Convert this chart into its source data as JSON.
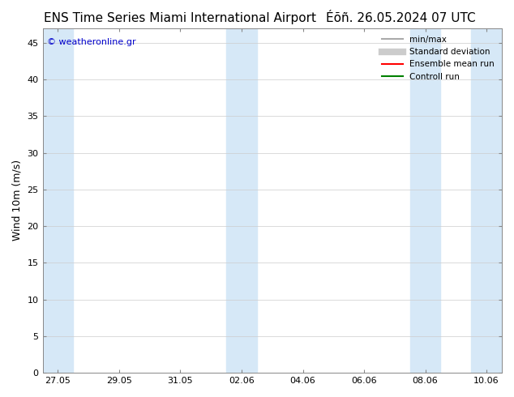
{
  "title_left": "ENS Time Series Miami International Airport",
  "title_right": "Éõñ. 26.05.2024 07 UTC",
  "ylabel": "Wind 10m (m/s)",
  "xlabel": "",
  "ylim": [
    0,
    47
  ],
  "yticks": [
    0,
    5,
    10,
    15,
    20,
    25,
    30,
    35,
    40,
    45
  ],
  "xtick_labels": [
    "27.05",
    "29.05",
    "31.05",
    "02.06",
    "04.06",
    "06.06",
    "08.06",
    "10.06"
  ],
  "xtick_positions": [
    0,
    2,
    4,
    6,
    8,
    10,
    12,
    14
  ],
  "bg_color": "#ffffff",
  "plot_bg_color": "#ffffff",
  "band_color": "#d6e8f7",
  "band_positions": [
    [
      0,
      1
    ],
    [
      6,
      7
    ],
    [
      12,
      13
    ],
    [
      14,
      15
    ]
  ],
  "watermark": "© weatheronline.gr",
  "watermark_color": "#0000cc",
  "legend_items": [
    {
      "label": "min/max",
      "color": "#aaaaaa",
      "lw": 1.5,
      "style": "-"
    },
    {
      "label": "Standard deviation",
      "color": "#cccccc",
      "lw": 6,
      "style": "-"
    },
    {
      "label": "Ensemble mean run",
      "color": "#ff0000",
      "lw": 1.5,
      "style": "-"
    },
    {
      "label": "Controll run",
      "color": "#008000",
      "lw": 1.5,
      "style": "-"
    }
  ],
  "title_fontsize": 11,
  "axis_fontsize": 9,
  "tick_fontsize": 8
}
